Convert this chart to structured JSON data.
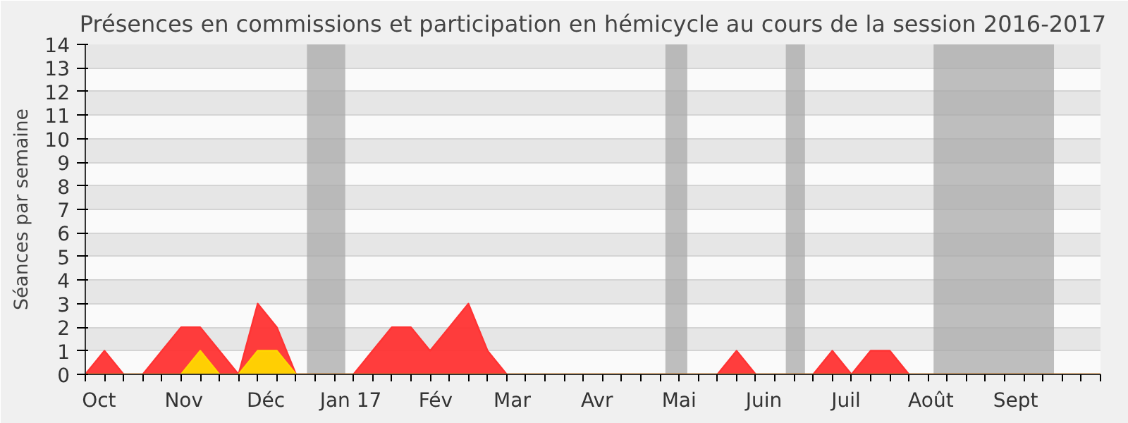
{
  "chart_data": {
    "type": "area",
    "title": "Présences en commissions et participation en hémicycle au cours de la session 2016-2017",
    "ylabel": "Séances par semaine",
    "x": [
      "2016-09-26",
      "2016-10-03",
      "2016-10-10",
      "2016-10-17",
      "2016-10-24",
      "2016-10-31",
      "2016-11-07",
      "2016-11-14",
      "2016-11-21",
      "2016-11-28",
      "2016-12-05",
      "2016-12-12",
      "2016-12-19",
      "2016-12-26",
      "2017-01-02",
      "2017-01-09",
      "2017-01-16",
      "2017-01-23",
      "2017-01-30",
      "2017-02-06",
      "2017-02-13",
      "2017-02-20",
      "2017-02-27",
      "2017-03-06",
      "2017-03-13",
      "2017-03-20",
      "2017-03-27",
      "2017-04-03",
      "2017-04-10",
      "2017-04-17",
      "2017-04-24",
      "2017-05-01",
      "2017-05-08",
      "2017-05-15",
      "2017-05-22",
      "2017-05-29",
      "2017-06-05",
      "2017-06-12",
      "2017-06-19",
      "2017-06-26",
      "2017-07-03",
      "2017-07-10",
      "2017-07-17",
      "2017-07-24",
      "2017-07-31",
      "2017-08-07",
      "2017-08-14",
      "2017-08-21",
      "2017-08-28",
      "2017-09-04",
      "2017-09-11",
      "2017-09-18",
      "2017-09-25",
      "2017-10-02"
    ],
    "series": [
      {
        "color": "#ff3333",
        "values": [
          0,
          1,
          0,
          0,
          1,
          2,
          2,
          1,
          0,
          3,
          2,
          0,
          0,
          0,
          0,
          1,
          2,
          2,
          1,
          2,
          3,
          1,
          0,
          0,
          0,
          0,
          0,
          0,
          0,
          0,
          0,
          0,
          0,
          0,
          1,
          0,
          0,
          0,
          0,
          1,
          0,
          1,
          1,
          0,
          0,
          0,
          0,
          0,
          0,
          0,
          0,
          0,
          0,
          0
        ]
      },
      {
        "color": "#ffd700",
        "values": [
          0,
          0,
          0,
          0,
          0,
          0,
          1,
          0,
          0,
          1,
          1,
          0,
          0,
          0,
          0,
          0,
          0,
          0,
          0,
          0,
          0,
          0,
          0,
          0,
          0,
          0,
          0,
          0,
          0,
          0,
          0,
          0,
          0,
          0,
          0,
          0,
          0,
          0,
          0,
          0,
          0,
          0,
          0,
          0,
          0,
          0,
          0,
          0,
          0,
          0,
          0,
          0,
          0,
          0
        ]
      }
    ],
    "xlim": [
      "2016-09-26",
      "2017-10-02"
    ],
    "xticks": [
      {
        "value": "2016-10-01",
        "label": "Oct"
      },
      {
        "value": "2016-11-01",
        "label": "Nov"
      },
      {
        "value": "2016-12-01",
        "label": "Déc"
      },
      {
        "value": "2017-01-01",
        "label": "Jan 17"
      },
      {
        "value": "2017-02-01",
        "label": "Fév"
      },
      {
        "value": "2017-03-01",
        "label": "Mar"
      },
      {
        "value": "2017-04-01",
        "label": "Avr"
      },
      {
        "value": "2017-05-01",
        "label": "Mai"
      },
      {
        "value": "2017-06-01",
        "label": "Juin"
      },
      {
        "value": "2017-07-01",
        "label": "Juil"
      },
      {
        "value": "2017-08-01",
        "label": "Août"
      },
      {
        "value": "2017-09-01",
        "label": "Sept"
      }
    ],
    "ylim": [
      0,
      14
    ],
    "yticks": [
      0,
      1,
      2,
      3,
      4,
      5,
      6,
      7,
      8,
      9,
      10,
      11,
      12,
      13,
      14
    ],
    "bands": [
      {
        "axis": "x",
        "from": "2016-12-16",
        "to": "2016-12-30",
        "color": "#aaaaaa"
      },
      {
        "axis": "x",
        "from": "2017-04-26",
        "to": "2017-05-04",
        "color": "#aaaaaa"
      },
      {
        "axis": "x",
        "from": "2017-06-09",
        "to": "2017-06-16",
        "color": "#aaaaaa"
      },
      {
        "axis": "x",
        "from": "2017-08-02",
        "to": "2017-09-15",
        "color": "#aaaaaa"
      }
    ],
    "grid": "y"
  }
}
